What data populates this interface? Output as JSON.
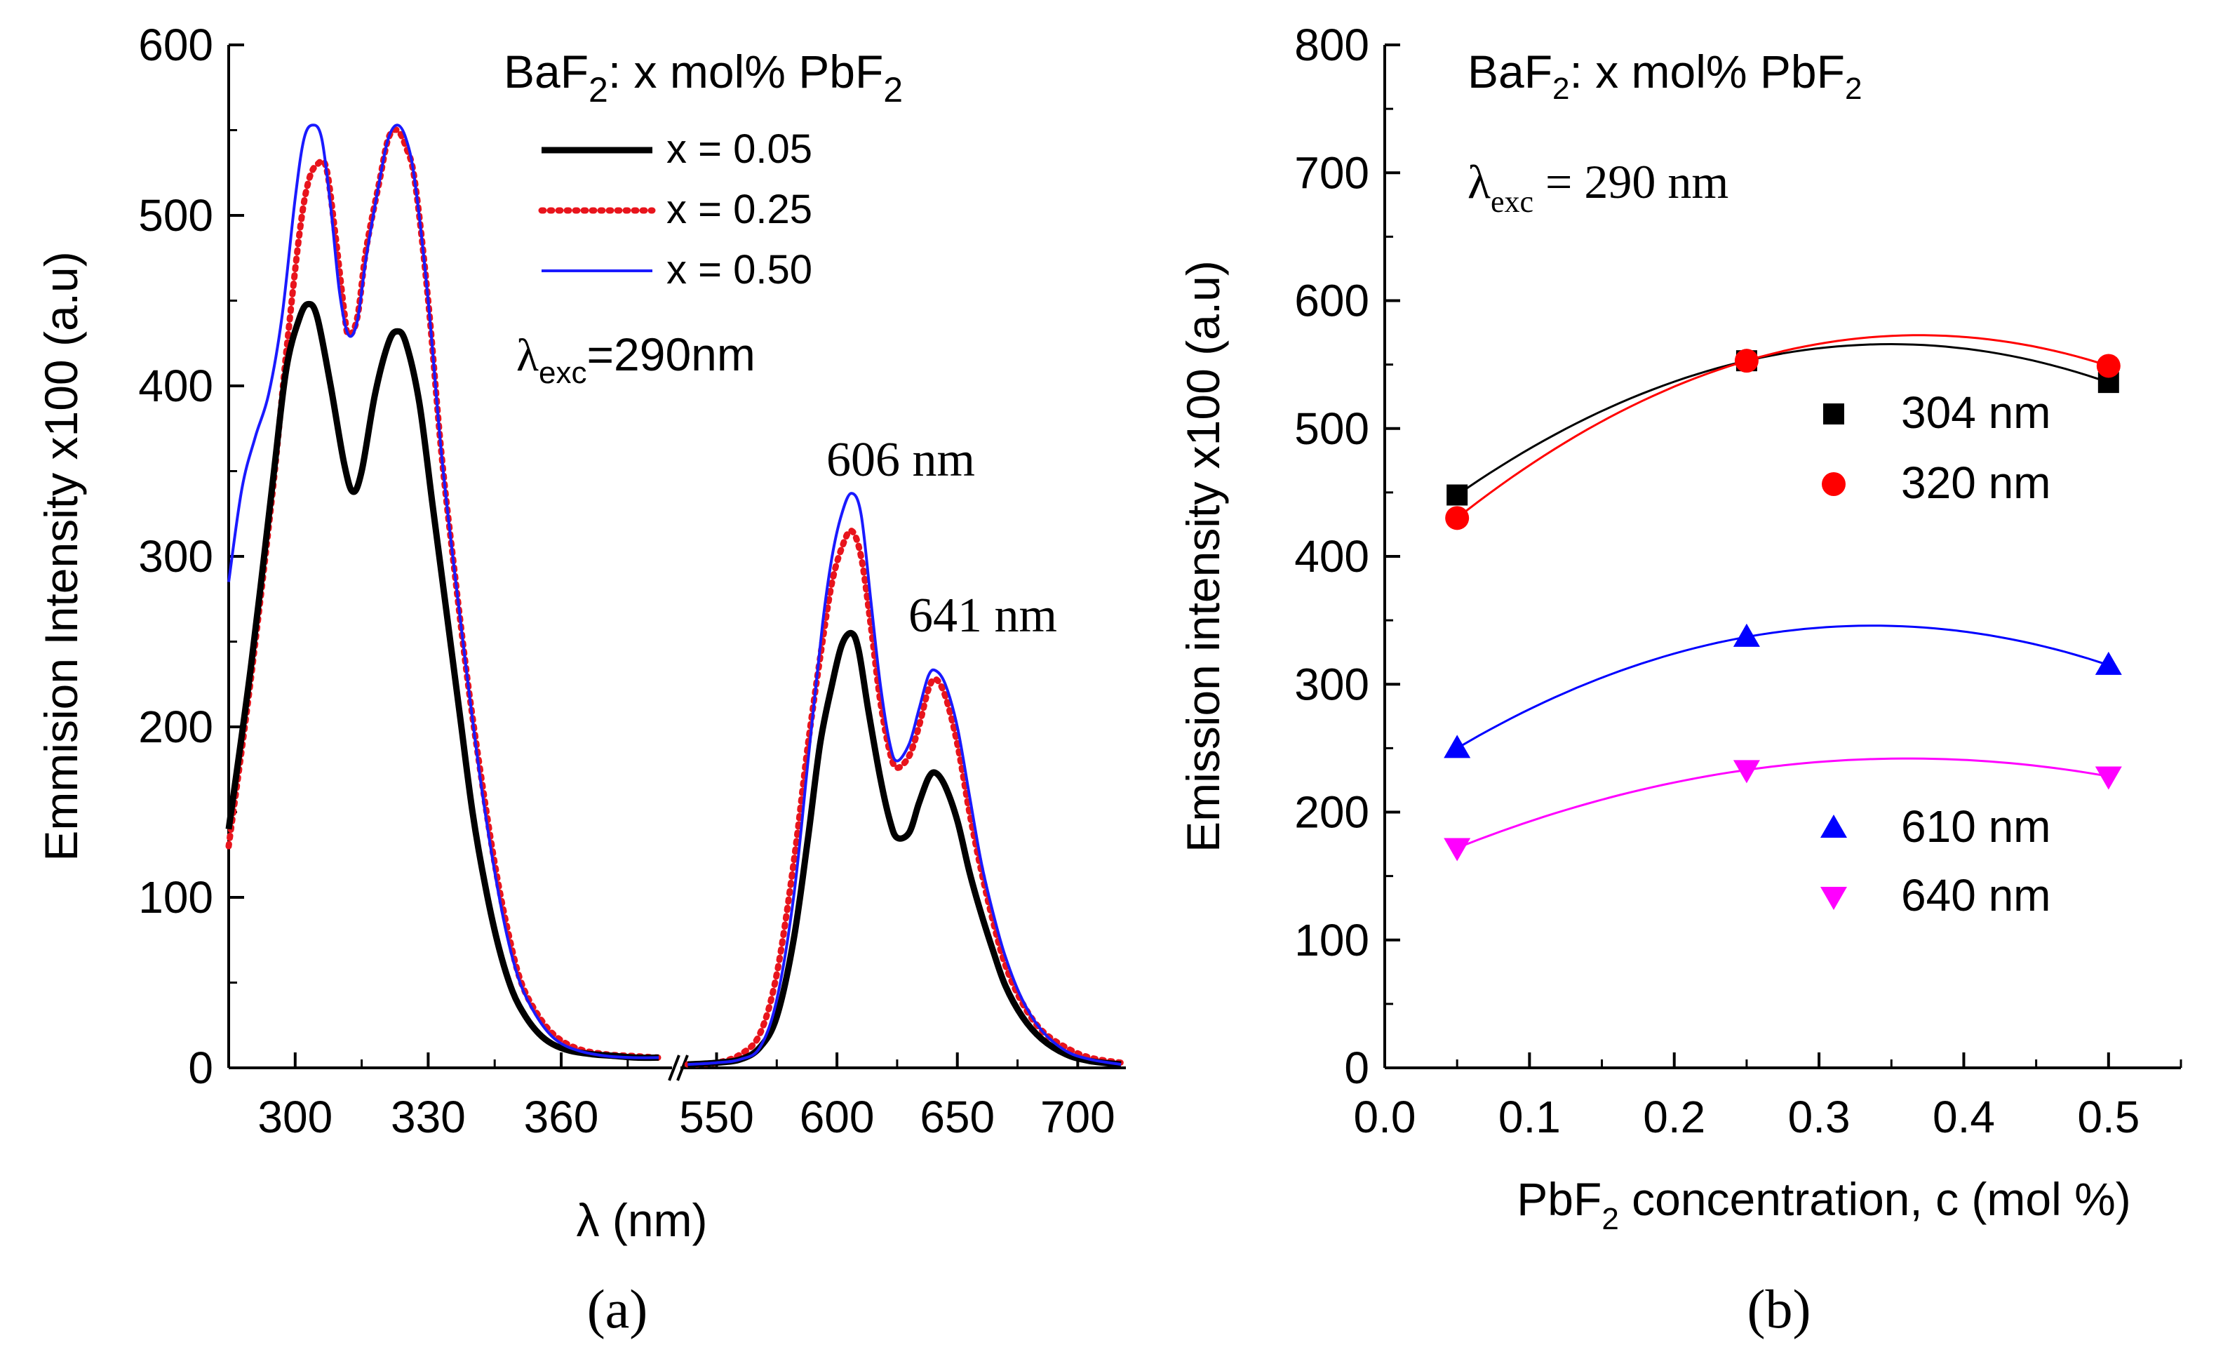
{
  "chart_data": [
    {
      "panel": "(a)",
      "type": "line",
      "title": "BaF₂: x mol% PbF₂",
      "title_parts": {
        "base": "BaF",
        "sub1": "2",
        "mid": ": x mol% PbF",
        "sub2": "2"
      },
      "excitation": {
        "symbol": "λ",
        "sub": "exc",
        "value": "=290nm"
      },
      "xlabel": "λ (nm)",
      "ylabel": "Emmision Intensity x100 (a.u)",
      "ylim": [
        0,
        600
      ],
      "yticks": [
        0,
        100,
        200,
        300,
        400,
        500,
        600
      ],
      "x_segments": [
        {
          "range": [
            285,
            385
          ],
          "ticks": [
            300,
            330,
            360
          ]
        },
        {
          "range": [
            535,
            720
          ],
          "ticks": [
            550,
            600,
            650,
            700
          ]
        }
      ],
      "axis_break": true,
      "legend_position": "top-right",
      "annotations": [
        {
          "text": "606 nm",
          "x": 606
        },
        {
          "text": "641 nm",
          "x": 641
        }
      ],
      "series": [
        {
          "name": "x = 0.05",
          "color": "#000000",
          "style": "solid",
          "segments": [
            [
              [
                285,
                140
              ],
              [
                290,
                235
              ],
              [
                295,
                345
              ],
              [
                298,
                410
              ],
              [
                301,
                440
              ],
              [
                303,
                448
              ],
              [
                305,
                440
              ],
              [
                308,
                400
              ],
              [
                311,
                355
              ],
              [
                313,
                338
              ],
              [
                315,
                350
              ],
              [
                318,
                395
              ],
              [
                321,
                425
              ],
              [
                323,
                432
              ],
              [
                325,
                425
              ],
              [
                328,
                390
              ],
              [
                331,
                330
              ],
              [
                334,
                270
              ],
              [
                337,
                210
              ],
              [
                340,
                150
              ],
              [
                343,
                105
              ],
              [
                346,
                70
              ],
              [
                349,
                45
              ],
              [
                352,
                30
              ],
              [
                355,
                20
              ],
              [
                358,
                14
              ],
              [
                362,
                10
              ],
              [
                367,
                8
              ],
              [
                372,
                7
              ],
              [
                377,
                6
              ],
              [
                382,
                6
              ]
            ],
            [
              [
                538,
                2
              ],
              [
                550,
                3
              ],
              [
                560,
                5
              ],
              [
                568,
                12
              ],
              [
                575,
                30
              ],
              [
                582,
                75
              ],
              [
                588,
                135
              ],
              [
                593,
                190
              ],
              [
                598,
                225
              ],
              [
                602,
                248
              ],
              [
                606,
                255
              ],
              [
                609,
                245
              ],
              [
                613,
                210
              ],
              [
                618,
                170
              ],
              [
                622,
                145
              ],
              [
                625,
                135
              ],
              [
                630,
                138
              ],
              [
                634,
                155
              ],
              [
                638,
                170
              ],
              [
                641,
                173
              ],
              [
                645,
                165
              ],
              [
                650,
                145
              ],
              [
                655,
                115
              ],
              [
                660,
                90
              ],
              [
                665,
                68
              ],
              [
                670,
                48
              ],
              [
                677,
                30
              ],
              [
                685,
                17
              ],
              [
                695,
                8
              ],
              [
                705,
                4
              ],
              [
                718,
                2
              ]
            ]
          ]
        },
        {
          "name": "x = 0.25",
          "color": "#e8141c",
          "style": "dotted",
          "segments": [
            [
              [
                285,
                130
              ],
              [
                290,
                228
              ],
              [
                295,
                340
              ],
              [
                298,
                420
              ],
              [
                301,
                490
              ],
              [
                303,
                520
              ],
              [
                305,
                530
              ],
              [
                307,
                528
              ],
              [
                309,
                490
              ],
              [
                311,
                445
              ],
              [
                312,
                430
              ],
              [
                314,
                440
              ],
              [
                316,
                480
              ],
              [
                319,
                520
              ],
              [
                321,
                545
              ],
              [
                323,
                550
              ],
              [
                325,
                540
              ],
              [
                327,
                520
              ],
              [
                330,
                450
              ],
              [
                333,
                360
              ],
              [
                336,
                290
              ],
              [
                339,
                225
              ],
              [
                342,
                170
              ],
              [
                345,
                120
              ],
              [
                348,
                80
              ],
              [
                351,
                50
              ],
              [
                355,
                30
              ],
              [
                359,
                18
              ],
              [
                364,
                11
              ],
              [
                370,
                8
              ],
              [
                376,
                7
              ],
              [
                382,
                6
              ]
            ],
            [
              [
                538,
                2
              ],
              [
                550,
                3
              ],
              [
                560,
                8
              ],
              [
                568,
                20
              ],
              [
                575,
                55
              ],
              [
                582,
                120
              ],
              [
                588,
                190
              ],
              [
                594,
                250
              ],
              [
                598,
                285
              ],
              [
                602,
                305
              ],
              [
                606,
                315
              ],
              [
                610,
                300
              ],
              [
                614,
                260
              ],
              [
                618,
                215
              ],
              [
                622,
                185
              ],
              [
                625,
                176
              ],
              [
                630,
                183
              ],
              [
                634,
                200
              ],
              [
                638,
                222
              ],
              [
                641,
                228
              ],
              [
                645,
                218
              ],
              [
                650,
                190
              ],
              [
                655,
                150
              ],
              [
                660,
                115
              ],
              [
                665,
                85
              ],
              [
                670,
                60
              ],
              [
                677,
                38
              ],
              [
                685,
                22
              ],
              [
                695,
                12
              ],
              [
                705,
                6
              ],
              [
                718,
                3
              ]
            ]
          ]
        },
        {
          "name": "x = 0.50",
          "color": "#1a1aff",
          "style": "solid",
          "segments": [
            [
              [
                285,
                285
              ],
              [
                288,
                340
              ],
              [
                291,
                370
              ],
              [
                294,
                395
              ],
              [
                297,
                440
              ],
              [
                300,
                510
              ],
              [
                302,
                545
              ],
              [
                304,
                553
              ],
              [
                306,
                545
              ],
              [
                308,
                505
              ],
              [
                310,
                455
              ],
              [
                312,
                430
              ],
              [
                314,
                438
              ],
              [
                316,
                475
              ],
              [
                319,
                520
              ],
              [
                321,
                545
              ],
              [
                323,
                553
              ],
              [
                325,
                545
              ],
              [
                327,
                520
              ],
              [
                330,
                450
              ],
              [
                333,
                360
              ],
              [
                336,
                290
              ],
              [
                339,
                225
              ],
              [
                342,
                165
              ],
              [
                345,
                115
              ],
              [
                348,
                75
              ],
              [
                351,
                48
              ],
              [
                355,
                28
              ],
              [
                359,
                16
              ],
              [
                364,
                10
              ],
              [
                370,
                7
              ],
              [
                376,
                6
              ],
              [
                382,
                6
              ]
            ],
            [
              [
                538,
                2
              ],
              [
                550,
                3
              ],
              [
                560,
                5
              ],
              [
                568,
                12
              ],
              [
                575,
                40
              ],
              [
                582,
                100
              ],
              [
                588,
                180
              ],
              [
                594,
                260
              ],
              [
                598,
                300
              ],
              [
                602,
                325
              ],
              [
                606,
                337
              ],
              [
                610,
                325
              ],
              [
                614,
                275
              ],
              [
                618,
                225
              ],
              [
                622,
                190
              ],
              [
                625,
                180
              ],
              [
                630,
                190
              ],
              [
                634,
                210
              ],
              [
                638,
                230
              ],
              [
                641,
                233
              ],
              [
                645,
                225
              ],
              [
                650,
                200
              ],
              [
                655,
                160
              ],
              [
                660,
                120
              ],
              [
                665,
                90
              ],
              [
                670,
                65
              ],
              [
                677,
                40
              ],
              [
                685,
                22
              ],
              [
                695,
                10
              ],
              [
                705,
                5
              ],
              [
                718,
                2
              ]
            ]
          ]
        }
      ]
    },
    {
      "panel": "(b)",
      "type": "scatter",
      "title": "BaF₂: x mol% PbF₂",
      "title_parts": {
        "base": "BaF",
        "sub1": "2",
        "mid": ": x mol% PbF",
        "sub2": "2"
      },
      "excitation": {
        "symbol": "λ",
        "sub": "exc",
        "value": " = 290 nm"
      },
      "xlabel": "PbF₂ concentration, c (mol %)",
      "xlabel_parts": {
        "base": "PbF",
        "sub": "2",
        "rest": " concentration, c (mol %)"
      },
      "ylabel": "Emission intensity x100 (a.u)",
      "xlim": [
        0,
        0.55
      ],
      "xticks": [
        0.0,
        0.1,
        0.2,
        0.3,
        0.4,
        0.5
      ],
      "xtick_labels": [
        "0.0",
        "0.1",
        "0.2",
        "0.3",
        "0.4",
        "0.5"
      ],
      "ylim": [
        0,
        800
      ],
      "yticks": [
        0,
        100,
        200,
        300,
        400,
        500,
        600,
        700,
        800
      ],
      "legend_position": "right",
      "series": [
        {
          "name": "304 nm",
          "color": "#000000",
          "marker": "square",
          "x": [
            0.05,
            0.25,
            0.5
          ],
          "y": [
            448,
            553,
            536
          ]
        },
        {
          "name": "320 nm",
          "color": "#ff0000",
          "marker": "circle",
          "x": [
            0.05,
            0.25,
            0.5
          ],
          "y": [
            430,
            553,
            549
          ]
        },
        {
          "name": "610 nm",
          "color": "#0000ff",
          "marker": "triangle-up",
          "x": [
            0.05,
            0.25,
            0.5
          ],
          "y": [
            250,
            337,
            315
          ]
        },
        {
          "name": "640 nm",
          "color": "#ff00ff",
          "marker": "triangle-down",
          "x": [
            0.05,
            0.25,
            0.5
          ],
          "y": [
            172,
            233,
            228
          ]
        }
      ]
    }
  ]
}
